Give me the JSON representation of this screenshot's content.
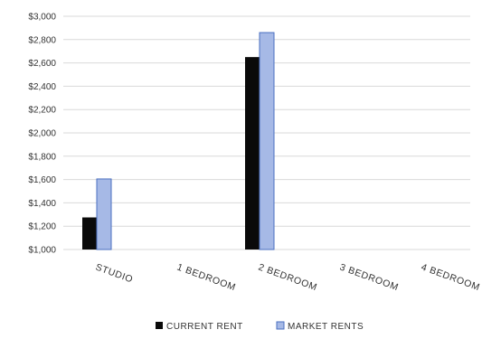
{
  "chart_data": {
    "type": "bar",
    "categories": [
      "STUDIO",
      "1 BEDROOM",
      "2 BEDROOM",
      "3 BEDROOM",
      "4 BEDROOM"
    ],
    "series": [
      {
        "name": "CURRENT RENT",
        "values": [
          1275,
          null,
          2650,
          null,
          null
        ],
        "color": "#0a0a0a"
      },
      {
        "name": "MARKET RENTS",
        "values": [
          1605,
          null,
          2860,
          null,
          null
        ],
        "color": "#a6b9e6"
      }
    ],
    "ylim": [
      1000,
      3000
    ],
    "yticks": [
      1000,
      1200,
      1400,
      1600,
      1800,
      2000,
      2200,
      2400,
      2600,
      2800,
      3000
    ],
    "ytick_labels": [
      "$1,000",
      "$1,200",
      "$1,400",
      "$1,600",
      "$1,800",
      "$2,000",
      "$2,200",
      "$2,400",
      "$2,600",
      "$2,800",
      "$3,000"
    ],
    "grid": true,
    "legend_position": "bottom",
    "market_bar_outline": "#4a6fc0"
  }
}
